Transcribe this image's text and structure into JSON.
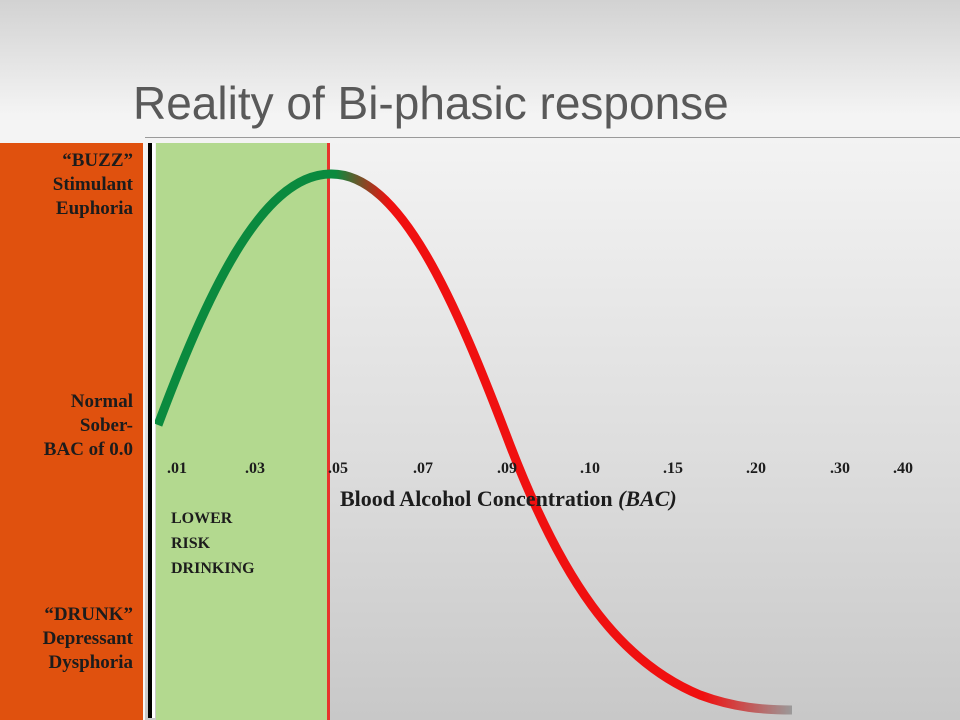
{
  "title": "Reality of Bi-phasic response",
  "y_labels": {
    "top": [
      "“BUZZ”",
      "Stimulant",
      "Euphoria"
    ],
    "middle": [
      "Normal",
      "Sober-",
      "BAC of 0.0"
    ],
    "bottom": [
      "“DRUNK”",
      "Depressant",
      "Dysphoria"
    ]
  },
  "zone_label": [
    "LOWER",
    "RISK",
    "DRINKING"
  ],
  "x_axis": {
    "ticks": [
      ".01",
      ".03",
      ".05",
      ".07",
      ".09",
      ".10",
      ".15",
      ".20",
      ".30",
      ".40"
    ],
    "label": "Blood Alcohol Concentration",
    "label_italic": "(BAC)"
  },
  "colors": {
    "left_bar": "#e0510e",
    "safe_zone": "#b3d98f",
    "threshold_line": "#e8342c",
    "curve_rise": "#0a8a3e",
    "curve_fall": "#f01010",
    "curve_tail": "#9a9a9a"
  }
}
